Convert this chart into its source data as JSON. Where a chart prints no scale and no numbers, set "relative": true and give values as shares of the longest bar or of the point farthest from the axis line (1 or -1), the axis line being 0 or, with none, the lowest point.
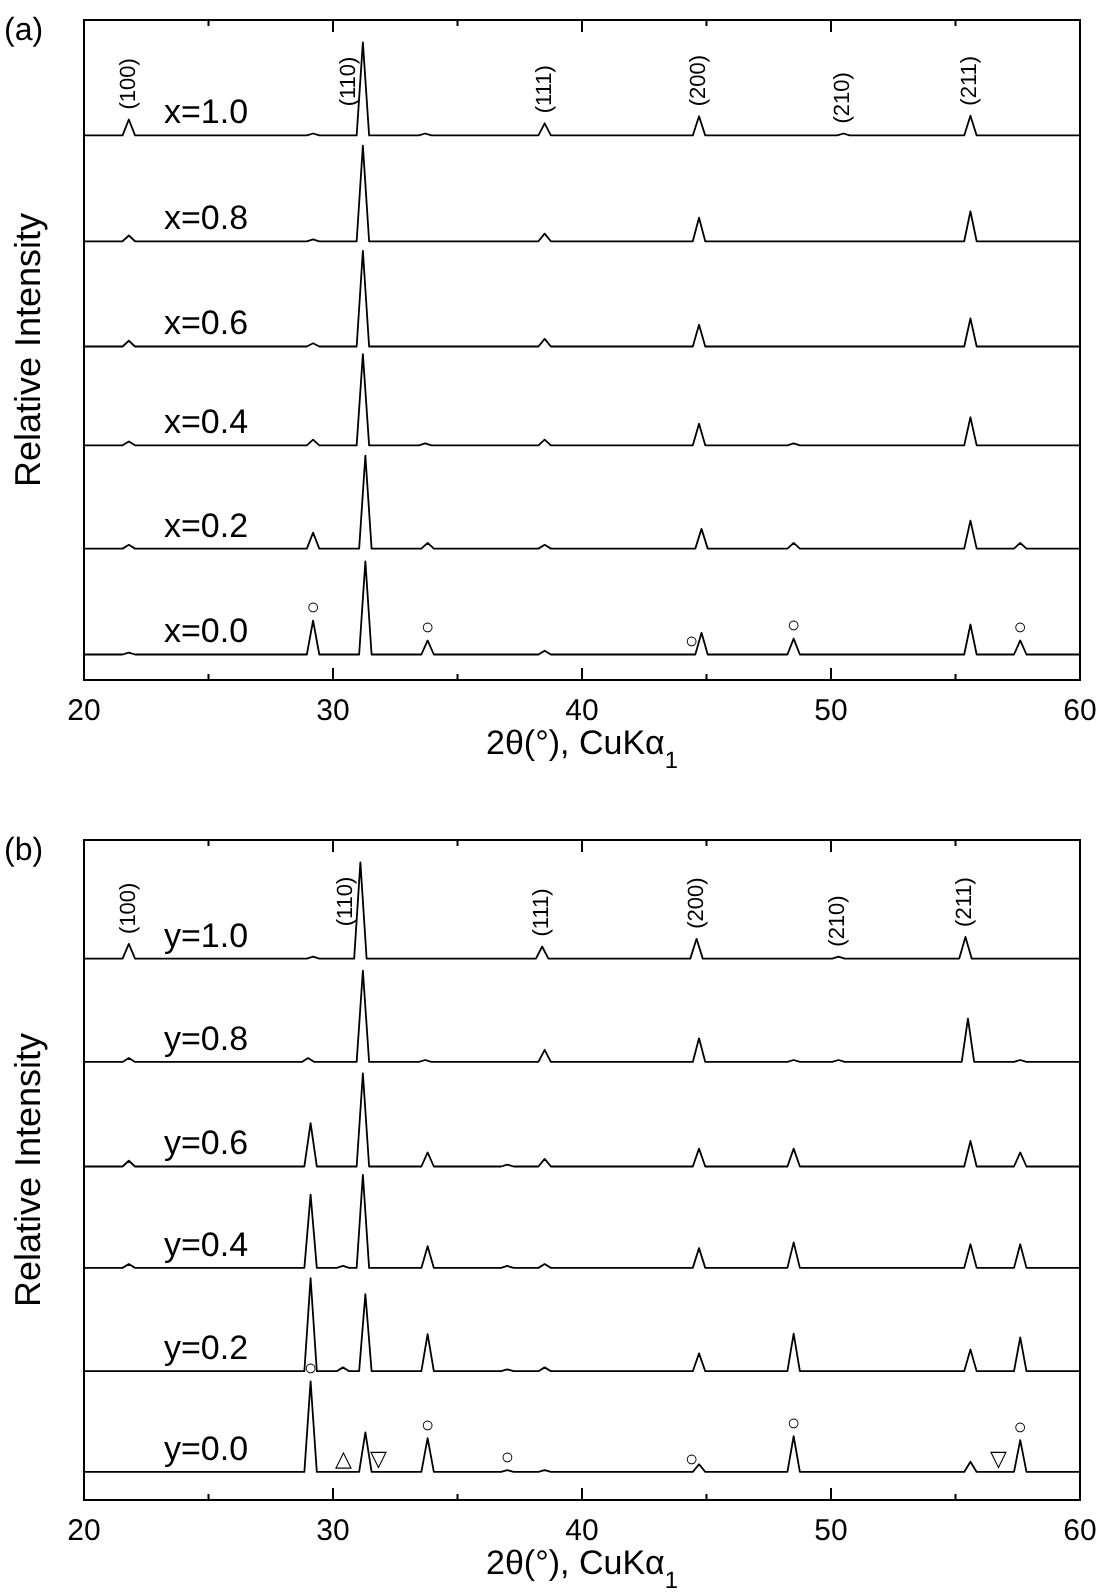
{
  "chart_data": [
    {
      "type": "line",
      "title": "(a)",
      "xlabel": "2θ(°), CuKα$_{1}$",
      "ylabel": "Relative Intensity",
      "relative": true,
      "xlim": [
        20,
        60
      ],
      "xticks": [
        20,
        {
          "value": 25,
          "label": null
        },
        30,
        {
          "value": 35,
          "label": null
        },
        40,
        {
          "value": 45,
          "label": null
        },
        50,
        {
          "value": 55,
          "label": null
        },
        60
      ],
      "series": [
        {
          "name": "x=1.0",
          "color": "#000000",
          "x": [
            20,
            21.55,
            21.8,
            22.05,
            28.95,
            29.2,
            29.45,
            30.95,
            31.2,
            31.45,
            33.45,
            33.7,
            33.95,
            38.25,
            38.5,
            38.75,
            44.45,
            44.7,
            44.95,
            50.25,
            50.5,
            50.75,
            55.35,
            55.6,
            55.85,
            60
          ],
          "values": [
            0.854,
            0.854,
            0.879,
            0.854,
            0.854,
            0.857,
            0.854,
            0.854,
            1.0,
            0.854,
            0.854,
            0.857,
            0.854,
            0.854,
            0.873,
            0.854,
            0.854,
            0.884,
            0.854,
            0.854,
            0.857,
            0.854,
            0.854,
            0.885,
            0.854,
            0.854
          ]
        },
        {
          "name": "x=0.8",
          "color": "#000000",
          "x": [
            20,
            21.55,
            21.8,
            22.05,
            28.95,
            29.2,
            29.45,
            30.95,
            31.2,
            31.45,
            38.25,
            38.5,
            38.75,
            44.45,
            44.7,
            44.95,
            55.35,
            55.6,
            55.85,
            60
          ],
          "values": [
            0.688,
            0.688,
            0.697,
            0.688,
            0.688,
            0.691,
            0.688,
            0.688,
            0.838,
            0.688,
            0.688,
            0.7,
            0.688,
            0.688,
            0.725,
            0.688,
            0.688,
            0.735,
            0.688,
            0.688
          ]
        },
        {
          "name": "x=0.6",
          "color": "#000000",
          "x": [
            20,
            21.55,
            21.8,
            22.05,
            28.95,
            29.2,
            29.45,
            30.95,
            31.2,
            31.45,
            38.25,
            38.5,
            38.75,
            44.45,
            44.7,
            44.95,
            55.35,
            55.6,
            55.85,
            60
          ],
          "values": [
            0.523,
            0.523,
            0.532,
            0.523,
            0.523,
            0.528,
            0.523,
            0.523,
            0.673,
            0.523,
            0.523,
            0.535,
            0.523,
            0.523,
            0.557,
            0.523,
            0.523,
            0.567,
            0.523,
            0.523
          ]
        },
        {
          "name": "x=0.4",
          "color": "#000000",
          "x": [
            20,
            21.55,
            21.8,
            22.05,
            28.95,
            29.2,
            29.45,
            30.95,
            31.2,
            31.45,
            33.45,
            33.7,
            33.95,
            38.25,
            38.5,
            38.75,
            44.45,
            44.7,
            44.95,
            48.25,
            48.5,
            48.75,
            55.35,
            55.6,
            55.85,
            60
          ],
          "values": [
            0.368,
            0.368,
            0.374,
            0.368,
            0.368,
            0.377,
            0.368,
            0.368,
            0.511,
            0.368,
            0.368,
            0.371,
            0.368,
            0.368,
            0.377,
            0.368,
            0.368,
            0.402,
            0.368,
            0.368,
            0.371,
            0.368,
            0.368,
            0.412,
            0.368,
            0.368
          ]
        },
        {
          "name": "x=0.2",
          "color": "#000000",
          "x": [
            20,
            21.55,
            21.8,
            22.05,
            28.95,
            29.2,
            29.45,
            31.05,
            31.3,
            31.55,
            33.55,
            33.8,
            34.05,
            38.25,
            38.5,
            38.75,
            44.55,
            44.8,
            45.05,
            48.25,
            48.5,
            48.75,
            55.35,
            55.6,
            55.85,
            57.35,
            57.6,
            57.85,
            60
          ],
          "values": [
            0.206,
            0.206,
            0.212,
            0.206,
            0.206,
            0.231,
            0.206,
            0.206,
            0.352,
            0.206,
            0.206,
            0.215,
            0.206,
            0.206,
            0.212,
            0.206,
            0.206,
            0.237,
            0.206,
            0.206,
            0.215,
            0.206,
            0.206,
            0.25,
            0.206,
            0.206,
            0.215,
            0.206,
            0.206
          ]
        },
        {
          "name": "x=0.0",
          "color": "#000000",
          "x": [
            20,
            21.55,
            21.8,
            22.05,
            28.95,
            29.2,
            29.45,
            31.05,
            31.3,
            31.55,
            33.55,
            33.8,
            34.05,
            38.25,
            38.5,
            38.75,
            44.55,
            44.8,
            45.05,
            48.25,
            48.5,
            48.75,
            55.35,
            55.6,
            55.85,
            57.35,
            57.6,
            57.85,
            60
          ],
          "values": [
            0.04,
            0.04,
            0.043,
            0.04,
            0.04,
            0.093,
            0.04,
            0.04,
            0.186,
            0.04,
            0.04,
            0.062,
            0.04,
            0.04,
            0.046,
            0.04,
            0.04,
            0.074,
            0.04,
            0.04,
            0.065,
            0.04,
            0.04,
            0.087,
            0.04,
            0.04,
            0.062,
            0.04,
            0.04
          ]
        }
      ],
      "annotations": [
        {
          "text": "(100)",
          "x": 21.8,
          "y": 0.879
        },
        {
          "text": "(110)",
          "x": 31.2,
          "y": 1.0
        },
        {
          "text": "(111)",
          "x": 38.5,
          "y": 0.873
        },
        {
          "text": "(200)",
          "x": 44.7,
          "y": 0.884
        },
        {
          "text": "(210)",
          "x": 50.5,
          "y": 0.857
        },
        {
          "text": "(211)",
          "x": 55.6,
          "y": 0.885
        },
        {
          "text": "○",
          "x": 29.2,
          "y": 0.093
        },
        {
          "text": "○",
          "x": 33.8,
          "y": 0.062
        },
        {
          "text": "○",
          "x": 44.4,
          "y": 0.04
        },
        {
          "text": "○",
          "x": 48.5,
          "y": 0.065
        },
        {
          "text": "○",
          "x": 57.6,
          "y": 0.062
        }
      ]
    },
    {
      "type": "line",
      "title": "(b)",
      "xlabel": "2θ(°), CuKα$_{1}$",
      "ylabel": "Relative Intensity",
      "relative": true,
      "xlim": [
        20,
        60
      ],
      "xticks": [
        20,
        {
          "value": 25,
          "label": null
        },
        30,
        {
          "value": 35,
          "label": null
        },
        40,
        {
          "value": 45,
          "label": null
        },
        50,
        {
          "value": 55,
          "label": null
        },
        60
      ],
      "series": [
        {
          "name": "y=1.0",
          "color": "#000000",
          "x": [
            20,
            21.55,
            21.8,
            22.05,
            28.95,
            29.2,
            29.45,
            30.85,
            31.1,
            31.35,
            38.15,
            38.4,
            38.65,
            44.35,
            44.6,
            44.85,
            50.05,
            50.3,
            50.55,
            55.15,
            55.4,
            55.65,
            60
          ],
          "values": [
            0.849,
            0.849,
            0.872,
            0.849,
            0.849,
            0.852,
            0.849,
            0.849,
            1.0,
            0.849,
            0.849,
            0.868,
            0.849,
            0.849,
            0.88,
            0.849,
            0.849,
            0.852,
            0.849,
            0.849,
            0.883,
            0.849,
            0.849
          ]
        },
        {
          "name": "y=0.8",
          "color": "#000000",
          "x": [
            20,
            21.55,
            21.8,
            22.05,
            28.75,
            29.0,
            29.25,
            30.95,
            31.2,
            31.45,
            33.45,
            33.7,
            33.95,
            38.25,
            38.5,
            38.75,
            44.45,
            44.7,
            44.95,
            48.25,
            48.5,
            48.75,
            50.05,
            50.3,
            50.55,
            55.25,
            55.5,
            55.75,
            57.35,
            57.6,
            57.85,
            60
          ],
          "values": [
            0.687,
            0.687,
            0.693,
            0.687,
            0.687,
            0.693,
            0.687,
            0.687,
            0.83,
            0.687,
            0.687,
            0.69,
            0.687,
            0.687,
            0.706,
            0.687,
            0.687,
            0.724,
            0.687,
            0.687,
            0.69,
            0.687,
            0.687,
            0.69,
            0.687,
            0.687,
            0.755,
            0.687,
            0.687,
            0.69,
            0.687,
            0.687
          ]
        },
        {
          "name": "y=0.6",
          "color": "#000000",
          "x": [
            20,
            21.55,
            21.8,
            22.05,
            28.85,
            29.1,
            29.35,
            30.95,
            31.2,
            31.45,
            33.55,
            33.8,
            34.05,
            36.75,
            37.0,
            37.25,
            38.25,
            38.5,
            38.75,
            44.45,
            44.7,
            44.95,
            48.25,
            48.5,
            48.75,
            55.35,
            55.6,
            55.85,
            57.35,
            57.6,
            57.85,
            60
          ],
          "values": [
            0.523,
            0.523,
            0.532,
            0.523,
            0.523,
            0.591,
            0.523,
            0.523,
            0.669,
            0.523,
            0.523,
            0.545,
            0.523,
            0.523,
            0.526,
            0.523,
            0.523,
            0.535,
            0.523,
            0.523,
            0.551,
            0.523,
            0.523,
            0.551,
            0.523,
            0.523,
            0.563,
            0.523,
            0.523,
            0.545,
            0.523,
            0.523
          ]
        },
        {
          "name": "y=0.4",
          "color": "#000000",
          "x": [
            20,
            21.55,
            21.8,
            22.05,
            28.85,
            29.1,
            29.35,
            30.15,
            30.4,
            30.65,
            30.95,
            31.2,
            31.45,
            33.55,
            33.8,
            34.05,
            36.75,
            37.0,
            37.25,
            38.25,
            38.5,
            38.75,
            44.45,
            44.7,
            44.95,
            48.25,
            48.5,
            48.75,
            55.35,
            55.6,
            55.85,
            57.35,
            57.6,
            57.85,
            60
          ],
          "values": [
            0.364,
            0.364,
            0.37,
            0.364,
            0.364,
            0.479,
            0.364,
            0.364,
            0.367,
            0.364,
            0.364,
            0.51,
            0.364,
            0.364,
            0.398,
            0.364,
            0.364,
            0.367,
            0.364,
            0.364,
            0.37,
            0.364,
            0.364,
            0.395,
            0.364,
            0.364,
            0.404,
            0.364,
            0.364,
            0.401,
            0.364,
            0.364,
            0.401,
            0.364,
            0.364
          ]
        },
        {
          "name": "y=0.2",
          "color": "#000000",
          "x": [
            20,
            28.85,
            29.1,
            29.35,
            30.15,
            30.4,
            30.65,
            31.05,
            31.3,
            31.55,
            33.55,
            33.8,
            34.05,
            36.75,
            37.0,
            37.25,
            38.25,
            38.5,
            38.75,
            44.45,
            44.7,
            44.95,
            48.25,
            48.5,
            48.75,
            55.35,
            55.6,
            55.85,
            57.35,
            57.6,
            57.85,
            60
          ],
          "values": [
            0.202,
            0.202,
            0.348,
            0.202,
            0.202,
            0.208,
            0.202,
            0.202,
            0.323,
            0.202,
            0.202,
            0.26,
            0.202,
            0.202,
            0.205,
            0.202,
            0.202,
            0.208,
            0.202,
            0.202,
            0.23,
            0.202,
            0.202,
            0.261,
            0.202,
            0.202,
            0.236,
            0.202,
            0.202,
            0.255,
            0.202,
            0.202
          ]
        },
        {
          "name": "y=0.0",
          "color": "#000000",
          "x": [
            20,
            28.85,
            29.1,
            29.35,
            31.05,
            31.3,
            31.55,
            33.55,
            33.8,
            34.05,
            36.75,
            37.0,
            37.25,
            38.25,
            38.5,
            38.75,
            44.45,
            44.7,
            44.95,
            48.25,
            48.5,
            48.75,
            55.35,
            55.6,
            55.85,
            57.35,
            57.6,
            57.85,
            60
          ],
          "values": [
            0.044,
            0.044,
            0.186,
            0.044,
            0.044,
            0.106,
            0.044,
            0.044,
            0.097,
            0.044,
            0.044,
            0.047,
            0.044,
            0.044,
            0.047,
            0.044,
            0.044,
            0.056,
            0.044,
            0.044,
            0.1,
            0.044,
            0.044,
            0.06,
            0.044,
            0.044,
            0.094,
            0.044,
            0.044
          ]
        }
      ],
      "annotations": [
        {
          "text": "(100)",
          "x": 21.8,
          "y": 0.872
        },
        {
          "text": "(110)",
          "x": 31.1,
          "y": 1.0
        },
        {
          "text": "(111)",
          "x": 38.4,
          "y": 0.868
        },
        {
          "text": "(200)",
          "x": 44.6,
          "y": 0.88
        },
        {
          "text": "(210)",
          "x": 50.3,
          "y": 0.852
        },
        {
          "text": "(211)",
          "x": 55.4,
          "y": 0.883
        },
        {
          "text": "○",
          "x": 29.1,
          "y": 0.186
        },
        {
          "text": "△",
          "x": 30.4,
          "y": 0.044
        },
        {
          "text": "▽",
          "x": 31.8,
          "y": 0.044
        },
        {
          "text": "○",
          "x": 33.8,
          "y": 0.097
        },
        {
          "text": "○",
          "x": 37.0,
          "y": 0.047
        },
        {
          "text": "○",
          "x": 44.4,
          "y": 0.044
        },
        {
          "text": "○",
          "x": 48.5,
          "y": 0.1
        },
        {
          "text": "▽",
          "x": 56.7,
          "y": 0.044
        },
        {
          "text": "○",
          "x": 57.6,
          "y": 0.094
        }
      ]
    }
  ]
}
